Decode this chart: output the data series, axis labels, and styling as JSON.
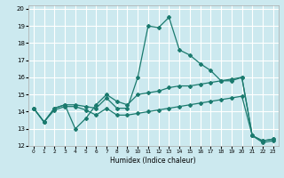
{
  "xlabel": "Humidex (Indice chaleur)",
  "xlim": [
    -0.5,
    23.5
  ],
  "ylim": [
    12,
    20.2
  ],
  "yticks": [
    12,
    13,
    14,
    15,
    16,
    17,
    18,
    19,
    20
  ],
  "xticks": [
    0,
    1,
    2,
    3,
    4,
    5,
    6,
    7,
    8,
    9,
    10,
    11,
    12,
    13,
    14,
    15,
    16,
    17,
    18,
    19,
    20,
    21,
    22,
    23
  ],
  "bg_color": "#cce9ef",
  "grid_color": "#ffffff",
  "line_color": "#1a7a6e",
  "line1_x": [
    0,
    1,
    2,
    3,
    4,
    5,
    6,
    7,
    8,
    9,
    10,
    11,
    12,
    13,
    14,
    15,
    16,
    17,
    18,
    19,
    20,
    21,
    22,
    23
  ],
  "line1_y": [
    14.2,
    13.4,
    14.2,
    14.4,
    14.4,
    14.3,
    14.2,
    14.8,
    14.2,
    14.2,
    16.0,
    19.0,
    18.9,
    19.5,
    17.6,
    17.3,
    16.8,
    16.4,
    15.8,
    15.8,
    16.0,
    12.6,
    12.3,
    12.4
  ],
  "line2_x": [
    0,
    1,
    2,
    3,
    4,
    5,
    6,
    7,
    8,
    9,
    10,
    11,
    12,
    13,
    14,
    15,
    16,
    17,
    18,
    19,
    20,
    21,
    22,
    23
  ],
  "line2_y": [
    14.2,
    13.4,
    14.2,
    14.4,
    13.0,
    13.6,
    14.4,
    15.0,
    14.6,
    14.4,
    15.0,
    15.1,
    15.2,
    15.4,
    15.5,
    15.5,
    15.6,
    15.7,
    15.8,
    15.9,
    16.0,
    12.6,
    12.3,
    12.4
  ],
  "line3_x": [
    0,
    1,
    2,
    3,
    4,
    5,
    6,
    7,
    8,
    9,
    10,
    11,
    12,
    13,
    14,
    15,
    16,
    17,
    18,
    19,
    20,
    21,
    22,
    23
  ],
  "line3_y": [
    14.2,
    13.4,
    14.1,
    14.3,
    14.3,
    14.1,
    13.8,
    14.2,
    13.8,
    13.8,
    13.9,
    14.0,
    14.1,
    14.2,
    14.3,
    14.4,
    14.5,
    14.6,
    14.7,
    14.8,
    14.9,
    12.6,
    12.2,
    12.3
  ]
}
